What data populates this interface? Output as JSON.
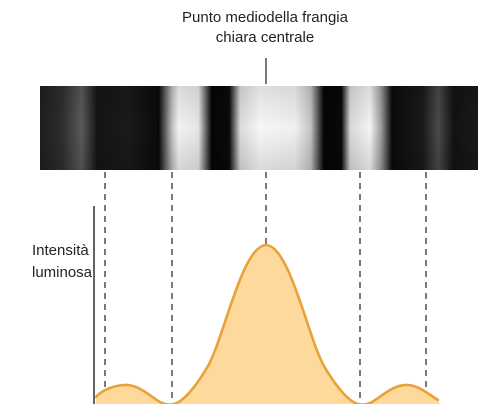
{
  "annotation": {
    "line1": "Punto mediodella frangia",
    "line2": "chiara centrale"
  },
  "y_axis_label": {
    "line1": "Intensità",
    "line2": "luminosa"
  },
  "colors": {
    "curve_stroke": "#e8a23a",
    "curve_fill": "#fdd99b",
    "fringe_dark": "#0c0c0c",
    "fringe_bright": "#f5f5f5",
    "text": "#231f20"
  },
  "fringe_markers": [
    "secondary-bright-left",
    "dark-left",
    "central-bright-midpoint",
    "dark-right",
    "secondary-bright-right"
  ]
}
